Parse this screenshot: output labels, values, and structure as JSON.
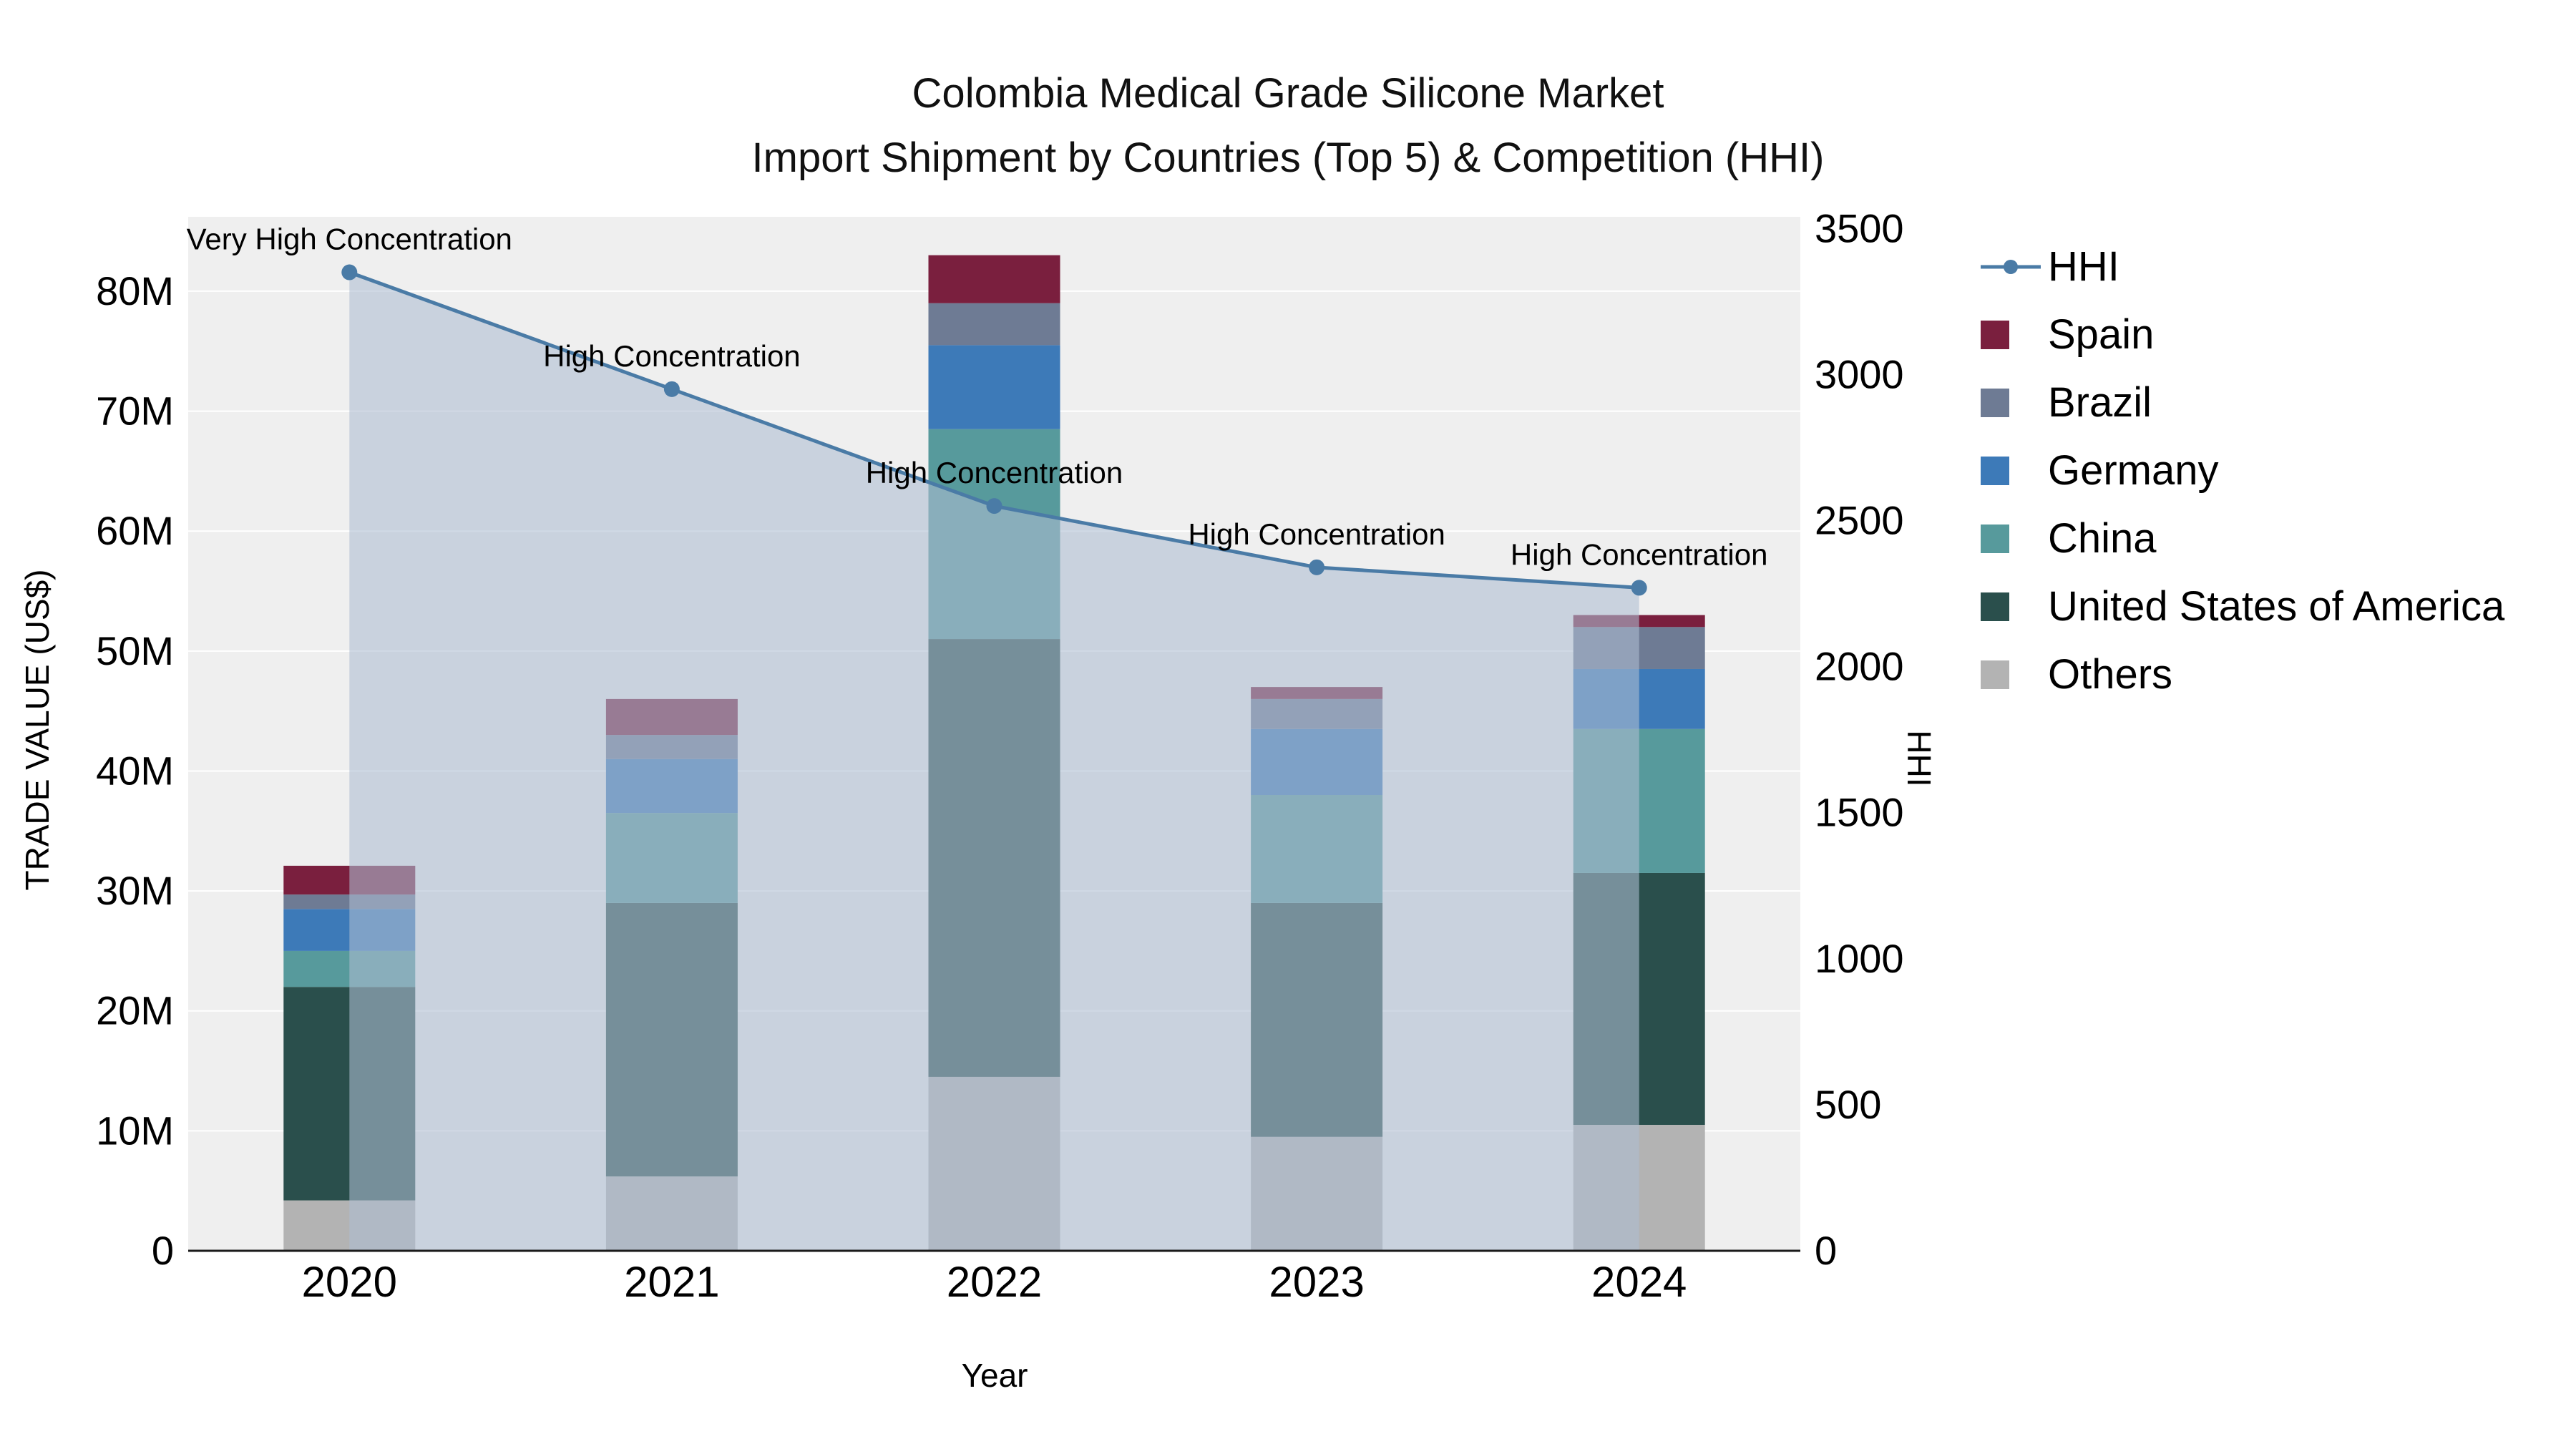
{
  "title": {
    "line1": "Colombia Medical Grade Silicone Market",
    "line2": "Import Shipment by Countries (Top 5) & Competition (HHI)"
  },
  "chart_data": {
    "type": "bar+line",
    "x": [
      "2020",
      "2021",
      "2022",
      "2023",
      "2024"
    ],
    "xlabel": "Year",
    "grid": "horizontal",
    "legend_position": "right",
    "left_axis": {
      "title": "TRADE VALUE (US$)",
      "tick_values": [
        0,
        10000000,
        20000000,
        30000000,
        40000000,
        50000000,
        60000000,
        70000000,
        80000000
      ],
      "tick_labels": [
        "0",
        "10M",
        "20M",
        "30M",
        "40M",
        "50M",
        "60M",
        "70M",
        "80M"
      ],
      "range": [
        0,
        86200000
      ]
    },
    "right_axis": {
      "title": "HHI",
      "tick_values": [
        0,
        500,
        1000,
        1500,
        2000,
        2500,
        3000,
        3500
      ],
      "tick_labels": [
        "0",
        "500",
        "1000",
        "1500",
        "2000",
        "2500",
        "3000",
        "3500"
      ],
      "range": [
        0,
        3540
      ]
    },
    "bar_series": [
      {
        "name": "Others",
        "color": "#b3b3b3",
        "values": [
          4200000,
          6200000,
          14500000,
          9500000,
          10500000
        ]
      },
      {
        "name": "United States of America",
        "color": "#2a4f4c",
        "values": [
          17800000,
          22800000,
          36500000,
          19500000,
          21000000
        ]
      },
      {
        "name": "China",
        "color": "#579a9c",
        "values": [
          3000000,
          7500000,
          17500000,
          9000000,
          12000000
        ]
      },
      {
        "name": "Germany",
        "color": "#3d7ab8",
        "values": [
          3500000,
          4500000,
          7000000,
          5500000,
          5000000
        ]
      },
      {
        "name": "Brazil",
        "color": "#6e7b94",
        "values": [
          1200000,
          2000000,
          3500000,
          2500000,
          3500000
        ]
      },
      {
        "name": "Spain",
        "color": "#7a1f3e",
        "values": [
          2400000,
          3000000,
          4000000,
          1000000,
          1000000
        ]
      }
    ],
    "hhi": {
      "name": "HHI",
      "color": "#4a7ba6",
      "fill": "rgba(174,190,211,0.58)",
      "values": [
        3350,
        2950,
        2550,
        2340,
        2270
      ],
      "annotations": [
        "Very High Concentration",
        "High Concentration",
        "High Concentration",
        "High Concentration",
        "High Concentration"
      ]
    }
  }
}
